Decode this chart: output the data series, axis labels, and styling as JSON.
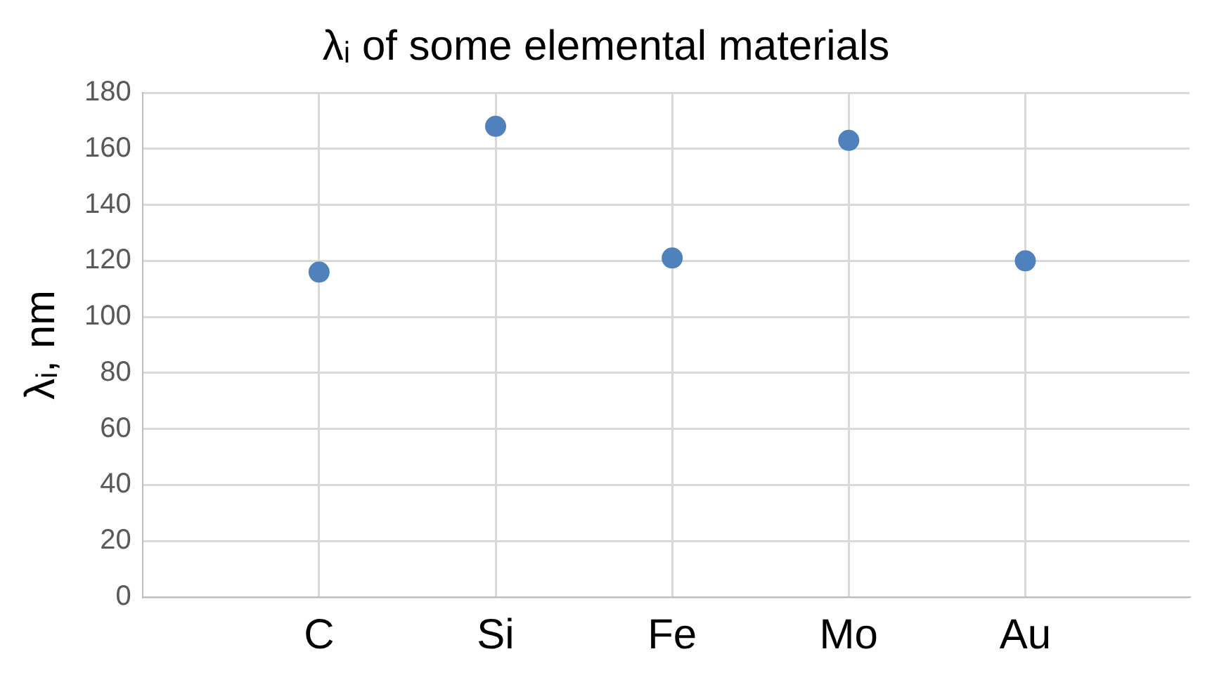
{
  "chart_data": {
    "type": "scatter",
    "title": "λᵢ of some elemental materials",
    "ylabel": "λᵢ, nm",
    "categories": [
      "C",
      "Si",
      "Fe",
      "Mo",
      "Au"
    ],
    "series": [
      {
        "color": "#4f81bd",
        "values": [
          116,
          168,
          121,
          163,
          120
        ]
      }
    ],
    "ylim": [
      0,
      180
    ],
    "yticks": [
      0,
      20,
      40,
      60,
      80,
      100,
      120,
      140,
      160,
      180
    ],
    "grid": true,
    "marker": "circle",
    "legend": false
  }
}
